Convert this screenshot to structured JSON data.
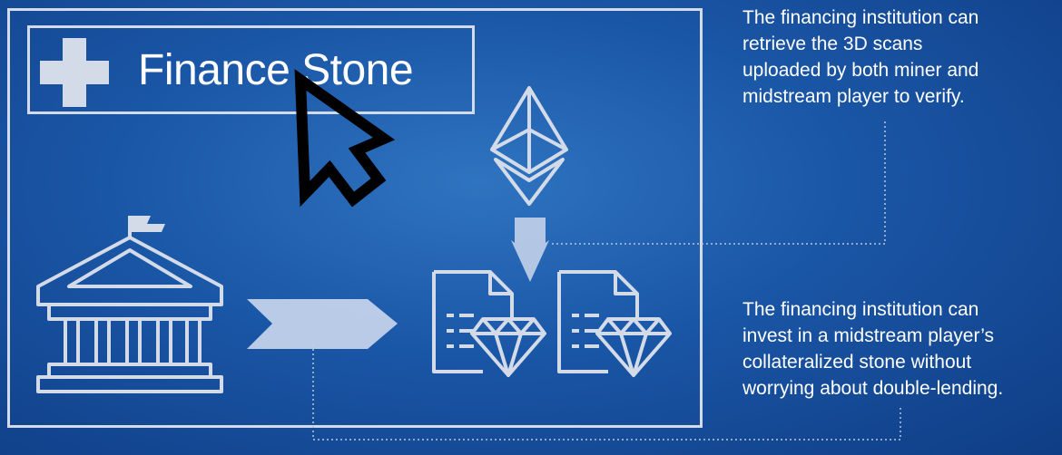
{
  "finance_button": {
    "label": "Finance Stone"
  },
  "captions": {
    "retrieve": "The financing institution can\nretrieve the 3D scans\nuploaded by both miner and\nmidstream player to verify.",
    "invest": "The financing institution can\ninvest in a midstream player’s\ncollateralized stone without\nworrying about double-lending."
  },
  "icons": [
    "plus-icon",
    "cursor-icon",
    "ethereum-icon",
    "bank-icon",
    "document-diamond-icon"
  ],
  "colors": {
    "background": "#1a56a6",
    "outline": "#d3dbe8",
    "arrow": "#c3d2ea",
    "text": "#ffffff"
  }
}
